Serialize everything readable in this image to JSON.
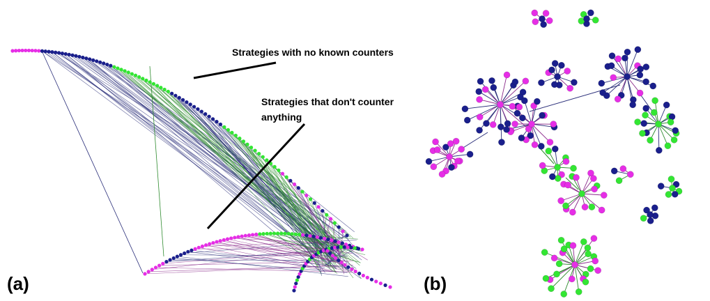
{
  "panels": {
    "a": {
      "label": "(a)",
      "annotations": [
        {
          "text": "Strategies with no known counters"
        },
        {
          "text_lines": [
            "Strategies that don't counter",
            "anything"
          ]
        }
      ]
    },
    "b": {
      "label": "(b)"
    }
  },
  "colors": {
    "navy": "#1a1f8c",
    "magenta": "#e62ee6",
    "green": "#33e633",
    "edge_navy": "#2b2f7a",
    "edge_purple": "#8a2a8a",
    "edge_green": "#2e8b2e",
    "annotation_line": "#000000"
  }
}
